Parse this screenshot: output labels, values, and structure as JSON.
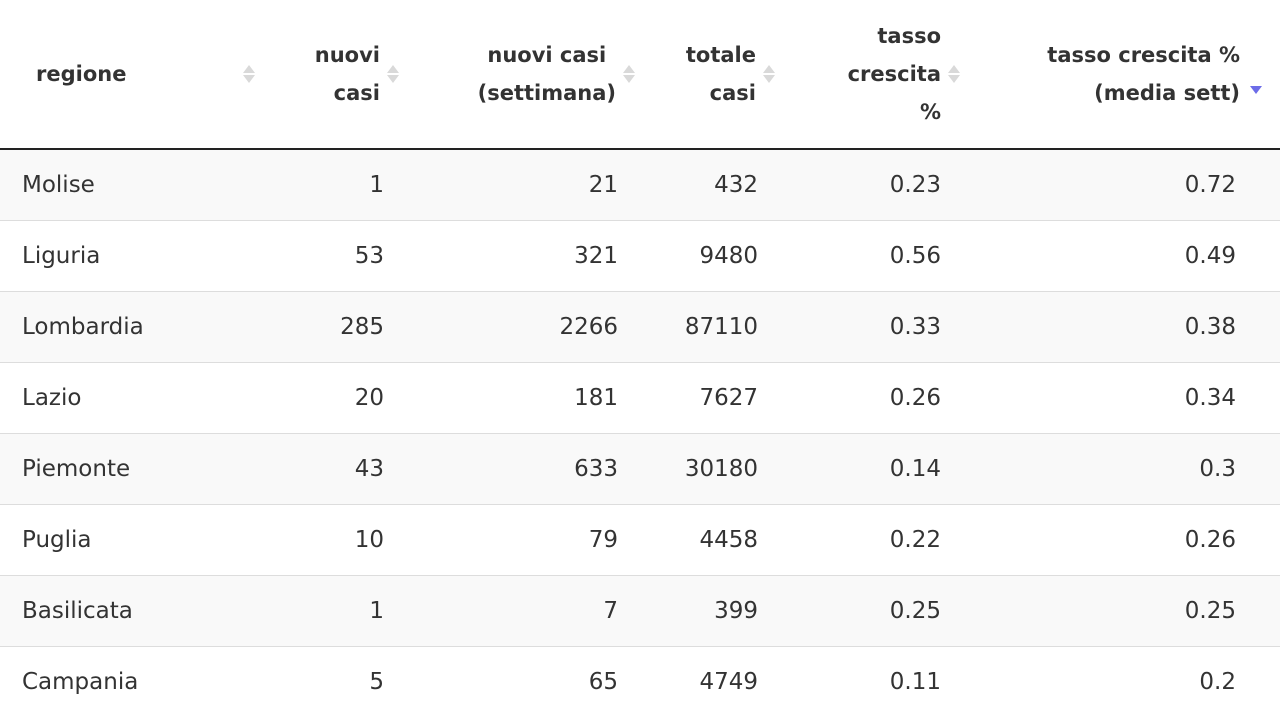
{
  "table": {
    "columns": [
      {
        "label": "regione",
        "lines": [
          "regione"
        ],
        "sort": "none"
      },
      {
        "label": "nuovi casi",
        "lines": [
          "nuovi",
          "casi"
        ],
        "sort": "none"
      },
      {
        "label": "nuovi casi (settimana)",
        "lines": [
          "nuovi casi",
          "(settimana)"
        ],
        "sort": "none"
      },
      {
        "label": "totale casi",
        "lines": [
          "totale",
          "casi"
        ],
        "sort": "none"
      },
      {
        "label": "tasso crescita %",
        "lines": [
          "tasso",
          "crescita",
          "%"
        ],
        "sort": "none"
      },
      {
        "label": "tasso crescita % (media sett)",
        "lines": [
          "tasso crescita %",
          "(media sett)"
        ],
        "sort": "descending"
      }
    ],
    "rows": [
      [
        "Molise",
        "1",
        "21",
        "432",
        "0.23",
        "0.72"
      ],
      [
        "Liguria",
        "53",
        "321",
        "9480",
        "0.56",
        "0.49"
      ],
      [
        "Lombardia",
        "285",
        "2266",
        "87110",
        "0.33",
        "0.38"
      ],
      [
        "Lazio",
        "20",
        "181",
        "7627",
        "0.26",
        "0.34"
      ],
      [
        "Piemonte",
        "43",
        "633",
        "30180",
        "0.14",
        "0.3"
      ],
      [
        "Puglia",
        "10",
        "79",
        "4458",
        "0.22",
        "0.26"
      ],
      [
        "Basilicata",
        "1",
        "7",
        "399",
        "0.25",
        "0.25"
      ],
      [
        "Campania",
        "5",
        "65",
        "4749",
        "0.11",
        "0.2"
      ]
    ]
  },
  "colors": {
    "sort_active": "#6c6ce8",
    "sort_inactive": "#d9d9d9",
    "header_border": "#222222",
    "row_stripe": "#f9f9f9"
  }
}
